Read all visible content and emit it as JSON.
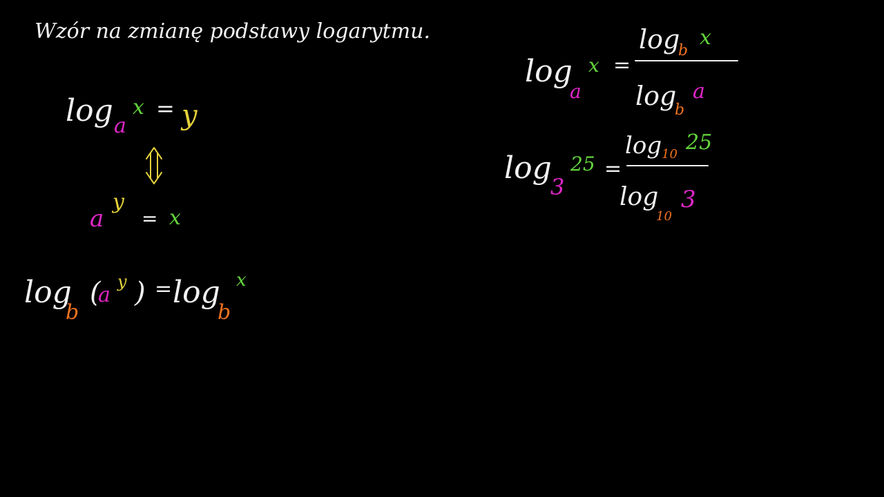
{
  "title": "Wzór na zmianę podstawy logarytmu.",
  "definition": [
    "log",
    "a",
    "x",
    "=",
    "y"
  ],
  "exponential_form": [
    "a",
    "y",
    "=",
    "x"
  ],
  "log_both_sides": [
    "log",
    "b",
    "(",
    "a",
    "y",
    ")",
    "=",
    "log",
    "b",
    "x"
  ],
  "change_of_base": {
    "lhs": [
      "log",
      "a",
      "x",
      "="
    ],
    "numerator": [
      "log",
      "b",
      "x"
    ],
    "denominator": [
      "log",
      "b",
      "a"
    ]
  },
  "example": {
    "lhs": [
      "log",
      "3",
      "25",
      "="
    ],
    "numerator": [
      "log",
      "10",
      "25"
    ],
    "denominator": [
      "log",
      "10",
      "3"
    ]
  }
}
